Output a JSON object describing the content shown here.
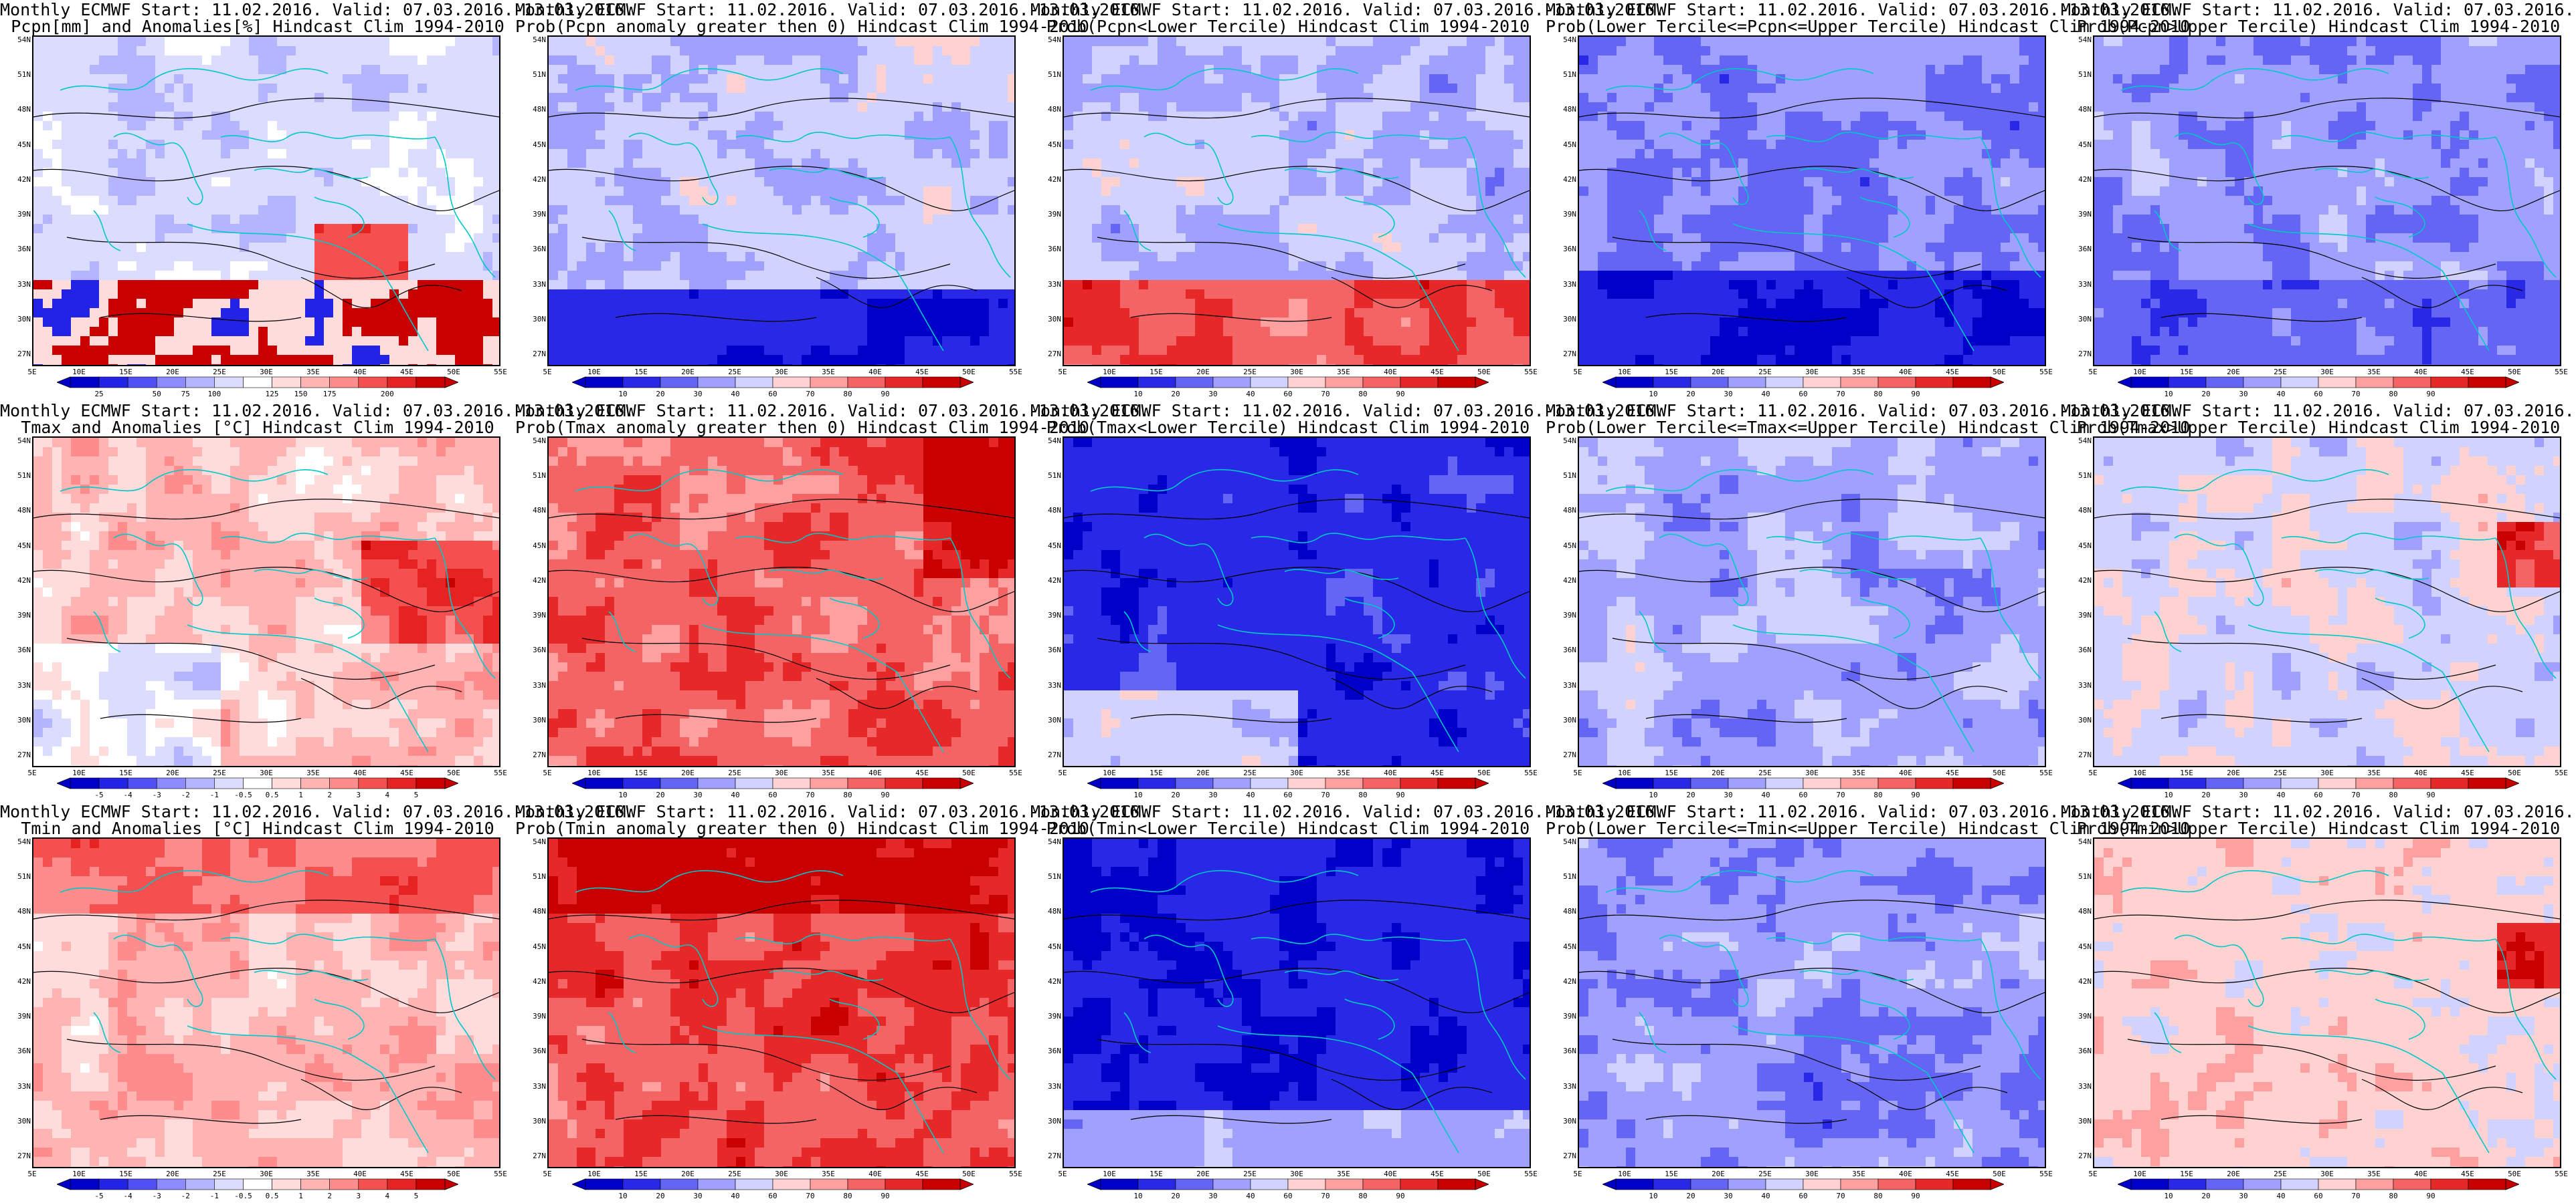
{
  "common": {
    "title_line1": "Monthly ECMWF Start: 11.02.2016. Valid: 07.03.2016.-13.03.2016.",
    "lat_ticks": [
      "54N",
      "51N",
      "48N",
      "45N",
      "42N",
      "39N",
      "36N",
      "33N",
      "30N",
      "27N"
    ],
    "lon_ticks": [
      "5E",
      "10E",
      "15E",
      "20E",
      "25E",
      "30E",
      "35E",
      "40E",
      "45E",
      "50E",
      "55E"
    ]
  },
  "colors": {
    "anomaly_scale": [
      "#0000c8",
      "#2323e6",
      "#5050f5",
      "#8c8cff",
      "#b4b4ff",
      "#dcdcff",
      "#ffffff",
      "#ffdcdc",
      "#ffb4b4",
      "#ff8c8c",
      "#f55050",
      "#e62323",
      "#c80000"
    ],
    "prob_scale": [
      "#0000c8",
      "#2828e6",
      "#6464f5",
      "#a0a0ff",
      "#d2d2ff",
      "#ffd2d2",
      "#ffa0a0",
      "#f56464",
      "#e62828",
      "#c80000"
    ],
    "coast": "#00c8c8",
    "contour": "#000000"
  },
  "panels": [
    {
      "title2": "Pcpn[mm] and Anomalies[%] Hindcast Clim 1994-2010",
      "kind": "pcpn_anom",
      "cbar_labels": [
        "25",
        "50",
        "75",
        "100",
        "125",
        "150",
        "175",
        "200"
      ],
      "field": "pa"
    },
    {
      "title2": "Prob(Pcpn anomaly greater then 0) Hindcast Clim 1994-2010",
      "kind": "prob",
      "cbar_labels": [
        "10",
        "20",
        "30",
        "40",
        "60",
        "70",
        "80",
        "90"
      ],
      "field": "pp"
    },
    {
      "title2": "Prob(Pcpn<Lower Tercile) Hindcast Clim 1994-2010",
      "kind": "prob",
      "cbar_labels": [
        "10",
        "20",
        "30",
        "40",
        "60",
        "70",
        "80",
        "90"
      ],
      "field": "pl"
    },
    {
      "title2": "Prob(Lower Tercile<=Pcpn<=Upper Tercile) Hindcast Clim 1994-2010",
      "kind": "prob",
      "cbar_labels": [
        "10",
        "20",
        "30",
        "40",
        "60",
        "70",
        "80",
        "90"
      ],
      "field": "pm"
    },
    {
      "title2": "Prob(Pcpn>Upper Tercile) Hindcast Clim 1994-2010",
      "kind": "prob",
      "cbar_labels": [
        "10",
        "20",
        "30",
        "40",
        "60",
        "70",
        "80",
        "90"
      ],
      "field": "pu"
    },
    {
      "title2": "Tmax and Anomalies [°C] Hindcast Clim 1994-2010",
      "kind": "temp_anom",
      "cbar_labels": [
        "-5",
        "-4",
        "-3",
        "-2",
        "-1",
        "-0.5",
        "0.5",
        "1",
        "2",
        "3",
        "4",
        "5"
      ],
      "field": "ta"
    },
    {
      "title2": "Prob(Tmax anomaly greater then 0) Hindcast Clim 1994-2010",
      "kind": "prob",
      "cbar_labels": [
        "10",
        "20",
        "30",
        "40",
        "60",
        "70",
        "80",
        "90"
      ],
      "field": "tp"
    },
    {
      "title2": "Prob(Tmax<Lower Tercile) Hindcast Clim 1994-2010",
      "kind": "prob",
      "cbar_labels": [
        "10",
        "20",
        "30",
        "40",
        "60",
        "70",
        "80",
        "90"
      ],
      "field": "tl"
    },
    {
      "title2": "Prob(Lower Tercile<=Tmax<=Upper Tercile) Hindcast Clim 1994-2010",
      "kind": "prob",
      "cbar_labels": [
        "10",
        "20",
        "30",
        "40",
        "60",
        "70",
        "80",
        "90"
      ],
      "field": "tm"
    },
    {
      "title2": "Prob(Tmax>Upper Tercile) Hindcast Clim 1994-2010",
      "kind": "prob",
      "cbar_labels": [
        "10",
        "20",
        "30",
        "40",
        "60",
        "70",
        "80",
        "90"
      ],
      "field": "tu"
    },
    {
      "title2": "Tmin and Anomalies [°C] Hindcast Clim 1994-2010",
      "kind": "temp_anom",
      "cbar_labels": [
        "-5",
        "-4",
        "-3",
        "-2",
        "-1",
        "-0.5",
        "0.5",
        "1",
        "2",
        "3",
        "4",
        "5"
      ],
      "field": "na"
    },
    {
      "title2": "Prob(Tmin anomaly greater then 0) Hindcast Clim 1994-2010",
      "kind": "prob",
      "cbar_labels": [
        "10",
        "20",
        "30",
        "40",
        "60",
        "70",
        "80",
        "90"
      ],
      "field": "np"
    },
    {
      "title2": "Prob(Tmin<Lower Tercile) Hindcast Clim 1994-2010",
      "kind": "prob",
      "cbar_labels": [
        "10",
        "20",
        "30",
        "40",
        "60",
        "70",
        "80",
        "90"
      ],
      "field": "nl"
    },
    {
      "title2": "Prob(Lower Tercile<=Tmin<=Upper Tercile) Hindcast Clim 1994-2010",
      "kind": "prob",
      "cbar_labels": [
        "10",
        "20",
        "30",
        "40",
        "60",
        "70",
        "80",
        "90"
      ],
      "field": "nm"
    },
    {
      "title2": "Prob(Tmin>Upper Tercile) Hindcast Clim 1994-2010",
      "kind": "prob",
      "cbar_labels": [
        "10",
        "20",
        "30",
        "40",
        "60",
        "70",
        "80",
        "90"
      ],
      "field": "nu"
    }
  ]
}
